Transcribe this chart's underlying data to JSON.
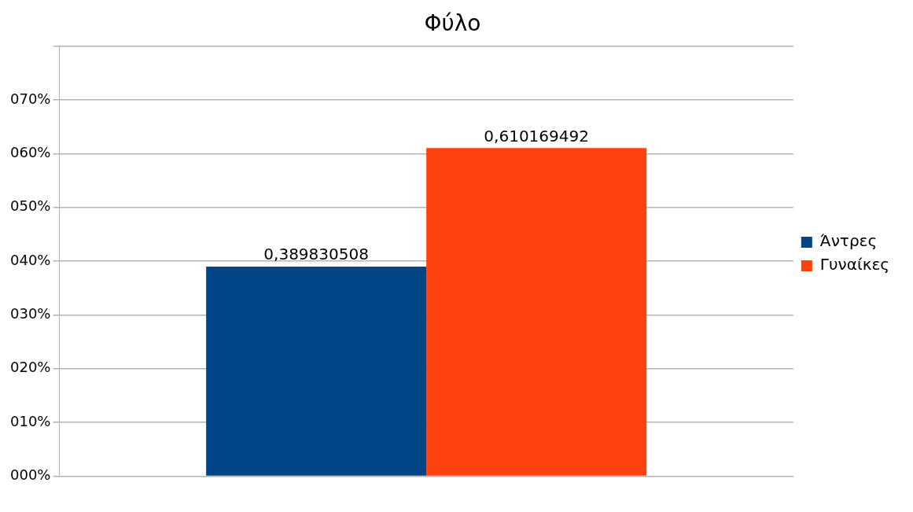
{
  "chart_data": {
    "type": "bar",
    "title": "Φύλο",
    "categories": [
      null
    ],
    "series": [
      {
        "name": "Άντρες",
        "color": "#004586",
        "values": [
          0.389830508
        ],
        "value_labels": [
          "0,389830508"
        ]
      },
      {
        "name": "Γυναίκες",
        "color": "#ff420e",
        "values": [
          0.610169492
        ],
        "value_labels": [
          "0,610169492"
        ]
      }
    ],
    "ylim": [
      0,
      0.8
    ],
    "yticks": [
      {
        "value": 0,
        "label": "000%"
      },
      {
        "value": 0.1,
        "label": "010%"
      },
      {
        "value": 0.2,
        "label": "020%"
      },
      {
        "value": 0.3,
        "label": "030%"
      },
      {
        "value": 0.4,
        "label": "040%"
      },
      {
        "value": 0.5,
        "label": "050%"
      },
      {
        "value": 0.6,
        "label": "060%"
      },
      {
        "value": 0.7,
        "label": "070%"
      },
      {
        "value": 0.8,
        "label": null
      }
    ],
    "grid": "y",
    "legend": "right"
  }
}
